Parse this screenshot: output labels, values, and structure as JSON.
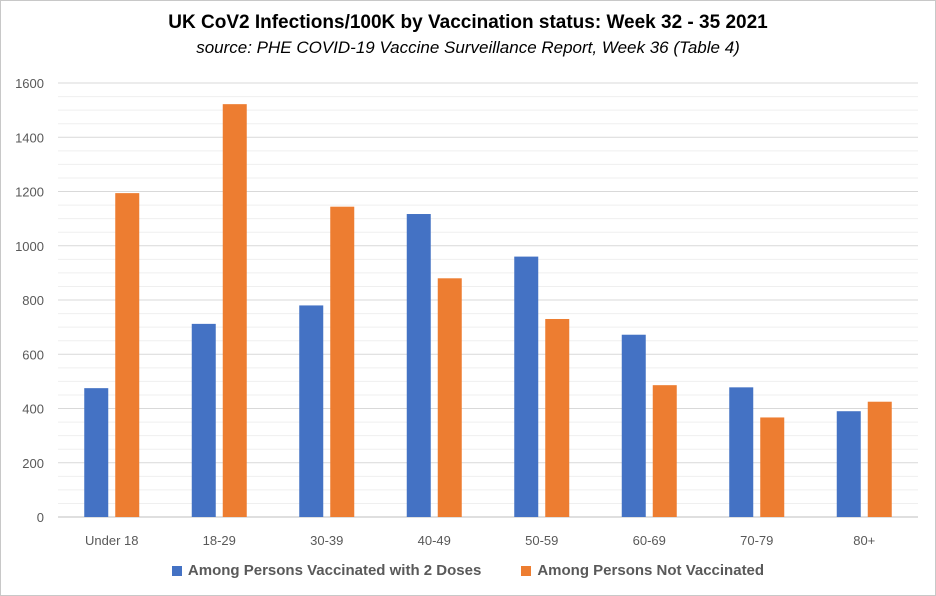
{
  "chart_data": {
    "type": "bar",
    "title": "UK CoV2 Infections/100K by Vaccination status: Week 32 - 35 2021",
    "subtitle": "source: PHE COVID-19 Vaccine Surveillance Report, Week 36 (Table 4)",
    "categories": [
      "Under 18",
      "18-29",
      "30-39",
      "40-49",
      "50-59",
      "60-69",
      "70-79",
      "80+"
    ],
    "series": [
      {
        "name": "Among Persons Vaccinated with 2 Doses",
        "color": "#4472c4",
        "values": [
          475,
          712,
          780,
          1117,
          960,
          672,
          478,
          390
        ]
      },
      {
        "name": "Among Persons Not Vaccinated",
        "color": "#ed7d31",
        "values": [
          1194,
          1522,
          1144,
          880,
          730,
          486,
          367,
          425
        ]
      }
    ],
    "ylim": [
      0,
      1600
    ],
    "yticks": [
      0,
      200,
      400,
      600,
      800,
      1000,
      1200,
      1400,
      1600
    ],
    "grid": true,
    "legend_position": "bottom"
  }
}
